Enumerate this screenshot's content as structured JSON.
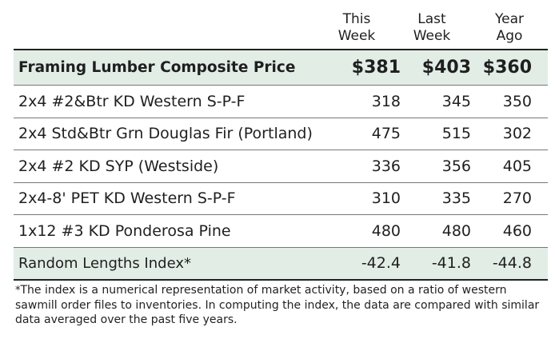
{
  "headers": {
    "this_week": [
      "This",
      "Week"
    ],
    "last_week": [
      "Last",
      "Week"
    ],
    "year_ago": [
      "Year",
      "Ago"
    ]
  },
  "composite": {
    "label": "Framing Lumber Composite Price",
    "this_week": "$381",
    "last_week": "$403",
    "year_ago": "$360"
  },
  "rows": [
    {
      "label": "2x4 #2&Btr KD Western S-P-F",
      "this_week": "318",
      "last_week": "345",
      "year_ago": "350"
    },
    {
      "label": "2x4 Std&Btr Grn Douglas Fir (Portland)",
      "this_week": "475",
      "last_week": "515",
      "year_ago": "302"
    },
    {
      "label": "2x4 #2 KD SYP (Westside)",
      "this_week": "336",
      "last_week": "356",
      "year_ago": "405"
    },
    {
      "label": "2x4-8' PET KD Western S-P-F",
      "this_week": "310",
      "last_week": "335",
      "year_ago": "270"
    },
    {
      "label": "1x12 #3 KD Ponderosa Pine",
      "this_week": "480",
      "last_week": "480",
      "year_ago": "460"
    }
  ],
  "index": {
    "label": "Random Lengths Index*",
    "this_week": "-42.4",
    "last_week": "-41.8",
    "year_ago": "-44.8"
  },
  "footnote": {
    "star": "*",
    "text": "The index is a numerical representation of market activity, based on a ratio of western sawmill order files to inventories. In computing the index, the data are compared with similar data averaged over the past five years."
  },
  "colors": {
    "shaded_row": "#e2ede6",
    "rule": "#222222"
  }
}
